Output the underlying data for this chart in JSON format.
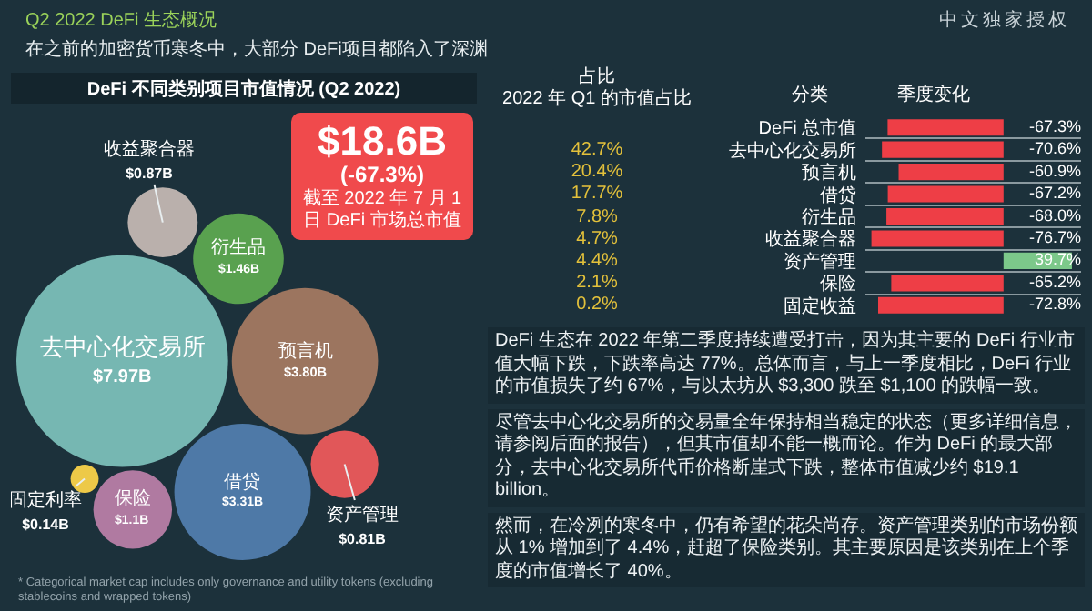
{
  "chart_data": [
    {
      "type": "other",
      "title": "Q2 2022 DeFi 生态概况",
      "subtitle": "在之前的加密货币寒冬中，大部分 DeFi项目都陷入了深渊",
      "annotations": [
        "中文独家授权"
      ]
    },
    {
      "type": "other",
      "title": "DeFi 不同类别项目市值情况 (Q2 2022)",
      "categories": [
        "去中心化交易所",
        "预言机",
        "借贷",
        "衍生品",
        "保险",
        "收益聚合器",
        "资产管理",
        "固定利率"
      ],
      "values": [
        7.97,
        3.8,
        3.31,
        1.46,
        1.1,
        0.87,
        0.81,
        0.14
      ],
      "value_labels": [
        "$7.97B",
        "$3.80B",
        "$3.31B",
        "$1.46B",
        "$1.1B",
        "$0.87B",
        "$0.81B",
        "$0.14B"
      ],
      "colors": [
        "#76b7b2",
        "#9c755f",
        "#4e79a7",
        "#59a14f",
        "#b07aa1",
        "#bab0ac",
        "#e15759",
        "#edc948"
      ],
      "annotations": [
        "$18.6B",
        "(-67.3%)",
        "截至 2022 年 7 月 1 日 DeFi 市场总市值",
        "* Categorical market cap includes only governance and utility tokens (excluding stablecoins and wrapped tokens)"
      ]
    },
    {
      "type": "other",
      "title": "占比\n2022 年 Q1 的市值占比",
      "annotations": [
        "42.7%",
        "20.4%",
        "17.7%",
        "7.8%",
        "4.7%",
        "4.4%",
        "2.1%",
        "0.2%"
      ]
    },
    {
      "type": "bar",
      "orientation": "horizontal",
      "ylabel": "分类",
      "categories": [
        "DeFi 总市值",
        "去中心化交易所",
        "预言机",
        "借贷",
        "衍生品",
        "收益聚合器",
        "资产管理",
        "保险",
        "固定收益"
      ],
      "series": [
        {
          "name": "季度变化",
          "colors": [
            "#ee3e46",
            "#ee3e46",
            "#ee3e46",
            "#ee3e46",
            "#ee3e46",
            "#ee3e46",
            "#7cc88a",
            "#ee3e46",
            "#ee3e46"
          ],
          "values": [
            -67.3,
            -70.6,
            -60.9,
            -67.2,
            -68.0,
            -76.7,
            39.7,
            -65.2,
            -72.8
          ],
          "value_labels": [
            "-67.3%",
            "-70.6%",
            "-60.9%",
            "-67.2%",
            "-68.0%",
            "-76.7%",
            "39.7%",
            "-65.2%",
            "-72.8%"
          ]
        }
      ],
      "xlim": [
        -80,
        45
      ],
      "tick_labels": "y",
      "grid": "y"
    },
    {
      "type": "other",
      "annotations": [
        "DeFi 生态在 2022 年第二季度持续遭受打击，因为其主要的 DeFi 行业市值大幅下跌，下跌率高达 77%。总体而言，与上一季度相比，DeFi 行业的市值损失了约 67%，与以太坊从 $3,300 跌至 $1,100 的跌幅一致。",
        "尽管去中心化交易所的交易量全年保持相当稳定的状态（更多详细信息，请参阅后面的报告），但其市值却不能一概而论。作为 DeFi 的最大部分，去中心化交易所代币价格断崖式下跌，整体市值减少约 $19.1 billion。",
        "然而，在冷冽的寒冬中，仍有希望的花朵尚存。资产管理类别的市场份额从 1% 增加到了 4.4%，赶超了保险类别。其主要原因是该类别在上个季度的市值增长了 40%。"
      ]
    }
  ]
}
